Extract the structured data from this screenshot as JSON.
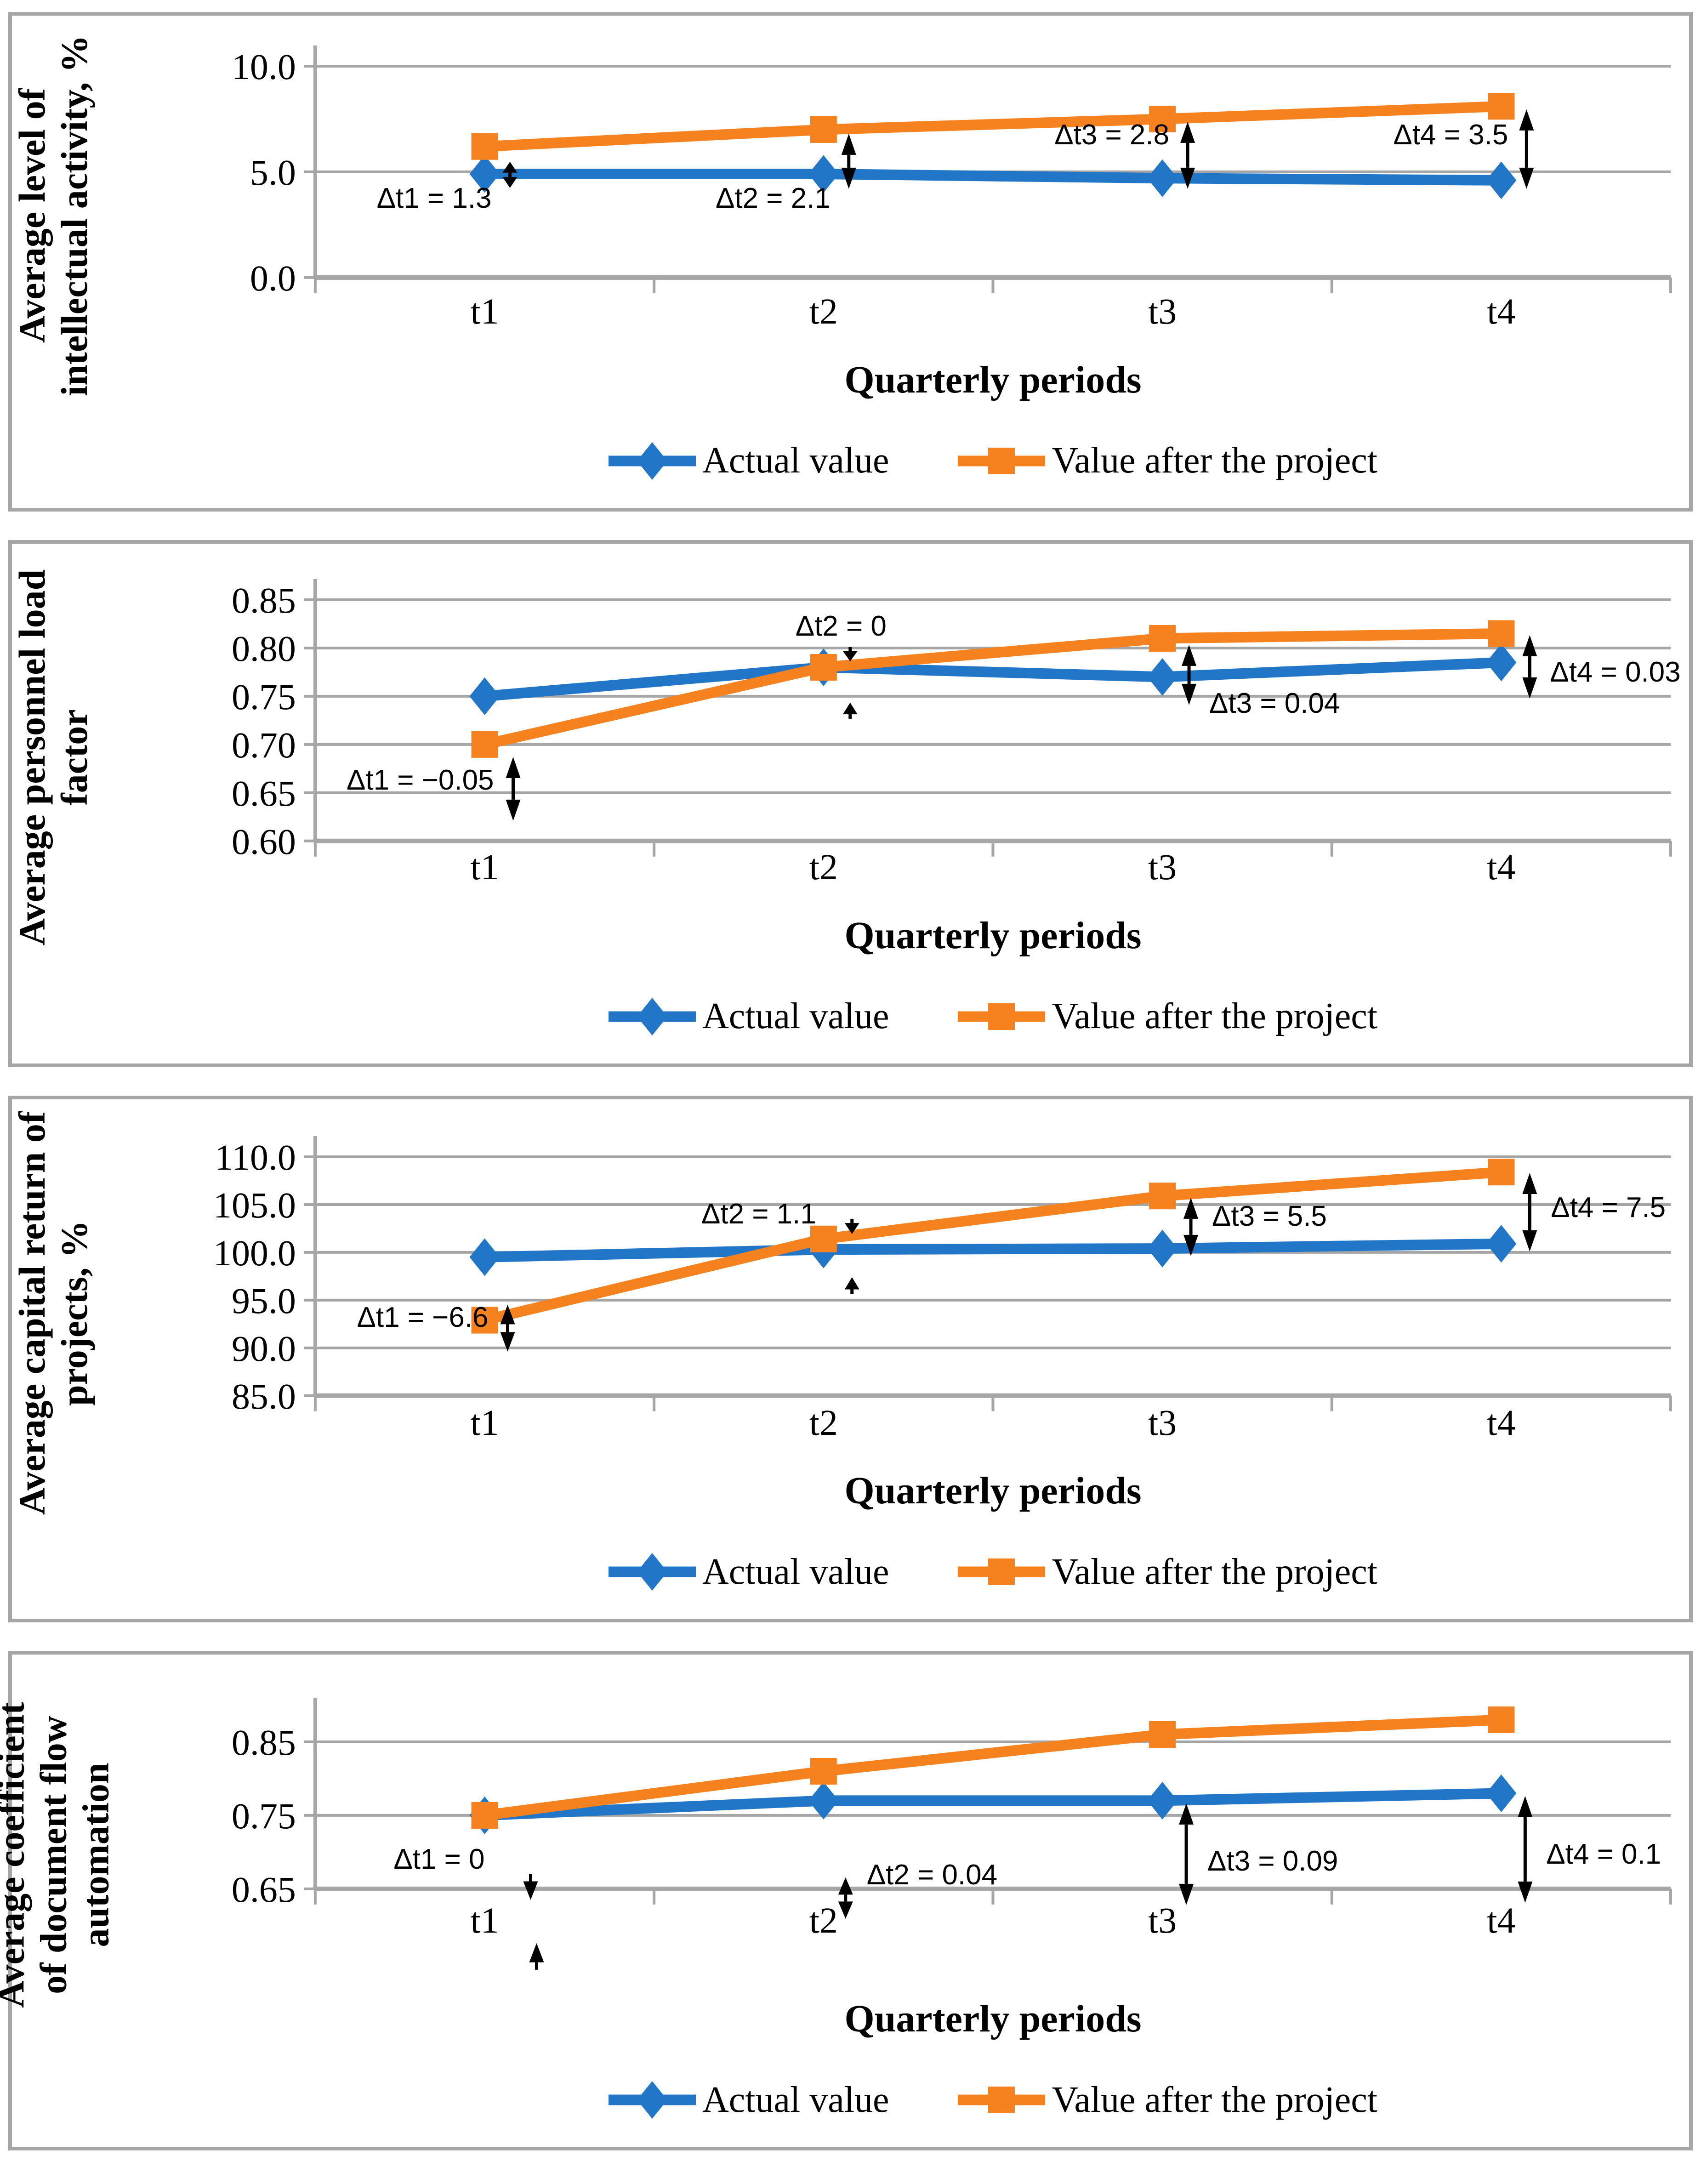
{
  "colors": {
    "actual": "#2176c7",
    "after": "#f5821f",
    "grid": "#a6a6a6",
    "panel_border": "#a6a6a6",
    "annotation": "#000000"
  },
  "chart_data": [
    {
      "type": "line",
      "ylabel": "Average level of\nintellectual activity, %",
      "xlabel": "Quarterly periods",
      "categories": [
        "t1",
        "t2",
        "t3",
        "t4"
      ],
      "yticks": [
        "10.0",
        "5.0",
        "0.0"
      ],
      "ytick_values": [
        10,
        5,
        0
      ],
      "ylim": [
        0,
        10
      ],
      "grid": true,
      "legend_position": "bottom",
      "series": [
        {
          "name": "Actual value",
          "values": [
            4.9,
            4.9,
            4.7,
            4.6
          ]
        },
        {
          "name": "Value after the project",
          "values": [
            6.2,
            7.0,
            7.5,
            8.1
          ]
        }
      ],
      "annotations": [
        {
          "label": "Δt1 = 1.3",
          "x": "t1",
          "delta": 1.3
        },
        {
          "label": "Δt2 = 2.1",
          "x": "t2",
          "delta": 2.1
        },
        {
          "label": "Δt3 = 2.8",
          "x": "t3",
          "delta": 2.8
        },
        {
          "label": "Δt4 = 3.5",
          "x": "t4",
          "delta": 3.5
        }
      ]
    },
    {
      "type": "line",
      "ylabel": "Average personnel load\nfactor",
      "xlabel": "Quarterly periods",
      "categories": [
        "t1",
        "t2",
        "t3",
        "t4"
      ],
      "yticks": [
        "0.85",
        "0.80",
        "0.75",
        "0.70",
        "0.65",
        "0.60"
      ],
      "ytick_values": [
        0.85,
        0.8,
        0.75,
        0.7,
        0.65,
        0.6
      ],
      "ylim": [
        0.6,
        0.85
      ],
      "grid": true,
      "legend_position": "bottom",
      "series": [
        {
          "name": "Actual value",
          "values": [
            0.75,
            0.78,
            0.77,
            0.785
          ]
        },
        {
          "name": "Value after the project",
          "values": [
            0.7,
            0.78,
            0.81,
            0.815
          ]
        }
      ],
      "annotations": [
        {
          "label": "Δt1 = −0.05",
          "x": "t1",
          "delta": -0.05
        },
        {
          "label": "Δt2 = 0",
          "x": "t2",
          "delta": 0
        },
        {
          "label": "Δt3 = 0.04",
          "x": "t3",
          "delta": 0.04
        },
        {
          "label": "Δt4 = 0.03",
          "x": "t4",
          "delta": 0.03
        }
      ]
    },
    {
      "type": "line",
      "ylabel": "Average capital return of\nprojects, %",
      "xlabel": "Quarterly periods",
      "categories": [
        "t1",
        "t2",
        "t3",
        "t4"
      ],
      "yticks": [
        "110.0",
        "105.0",
        "100.0",
        "95.0",
        "90.0",
        "85.0"
      ],
      "ytick_values": [
        110,
        105,
        100,
        95,
        90,
        85
      ],
      "ylim": [
        85,
        110
      ],
      "grid": true,
      "legend_position": "bottom",
      "series": [
        {
          "name": "Actual value",
          "values": [
            99.5,
            100.3,
            100.4,
            100.9
          ]
        },
        {
          "name": "Value after the project",
          "values": [
            92.9,
            101.4,
            105.9,
            108.4
          ]
        }
      ],
      "annotations": [
        {
          "label": "Δt1 = −6.6",
          "x": "t1",
          "delta": -6.6
        },
        {
          "label": "Δt2 = 1.1",
          "x": "t2",
          "delta": 1.1
        },
        {
          "label": "Δt3 = 5.5",
          "x": "t3",
          "delta": 5.5
        },
        {
          "label": "Δt4 = 7.5",
          "x": "t4",
          "delta": 7.5
        }
      ]
    },
    {
      "type": "line",
      "ylabel": "Average coefficient\nof document flow\nautomation",
      "xlabel": "Quarterly periods",
      "categories": [
        "t1",
        "t2",
        "t3",
        "t4"
      ],
      "yticks": [
        "0.85",
        "0.75",
        "0.65"
      ],
      "ytick_values": [
        0.85,
        0.75,
        0.65
      ],
      "ylim": [
        0.65,
        0.9
      ],
      "grid": true,
      "legend_position": "bottom",
      "series": [
        {
          "name": "Actual value",
          "values": [
            0.75,
            0.77,
            0.77,
            0.78
          ]
        },
        {
          "name": "Value after the project",
          "values": [
            0.75,
            0.81,
            0.86,
            0.88
          ]
        }
      ],
      "annotations": [
        {
          "label": "Δt1 = 0",
          "x": "t1",
          "delta": 0
        },
        {
          "label": "Δt2 = 0.04",
          "x": "t2",
          "delta": 0.04
        },
        {
          "label": "Δt3 = 0.09",
          "x": "t3",
          "delta": 0.09
        },
        {
          "label": "Δt4 = 0.1",
          "x": "t4",
          "delta": 0.1
        }
      ]
    }
  ]
}
